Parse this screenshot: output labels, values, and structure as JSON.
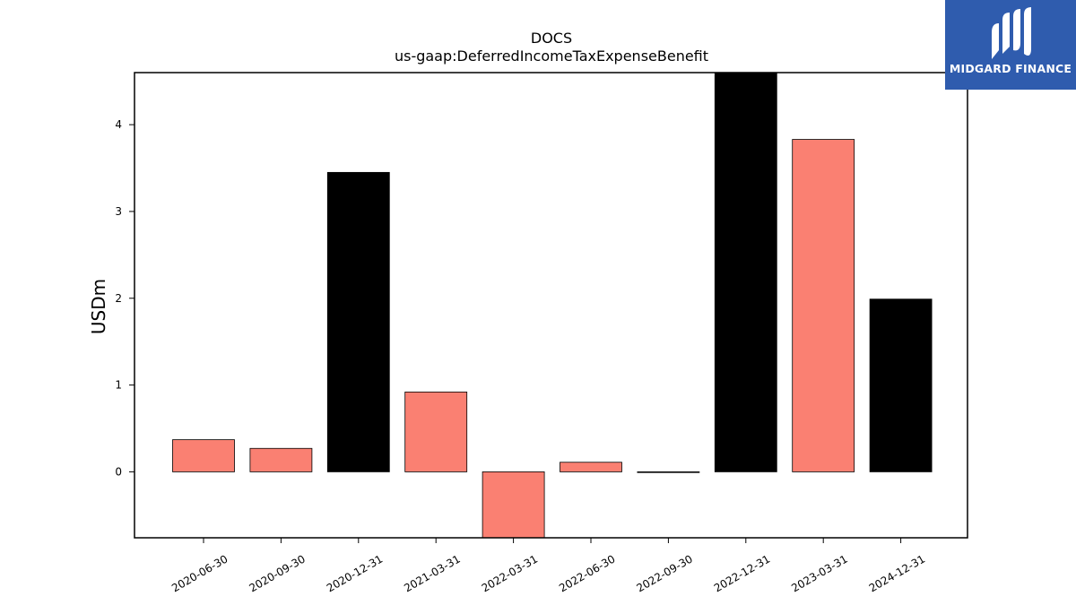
{
  "chart_data": {
    "type": "bar",
    "title": "DOCS",
    "subtitle": "us-gaap:DeferredIncomeTaxExpenseBenefit",
    "xlabel": "",
    "ylabel": "USDm",
    "ylim": [
      -0.76,
      4.6
    ],
    "yticks": [
      0,
      1,
      2,
      3,
      4
    ],
    "grid": false,
    "categories": [
      "2020-06-30",
      "2020-09-30",
      "2020-12-31",
      "2021-03-31",
      "2022-03-31",
      "2022-06-30",
      "2022-09-30",
      "2022-12-31",
      "2023-03-31",
      "2024-12-31"
    ],
    "values": [
      0.37,
      0.27,
      3.45,
      0.92,
      -0.76,
      0.11,
      -0.005,
      4.6,
      3.83,
      1.99
    ],
    "bar_colors": [
      "#fa8072",
      "#fa8072",
      "#000000",
      "#fa8072",
      "#fa8072",
      "#fa8072",
      "#fa8072",
      "#000000",
      "#fa8072",
      "#000000"
    ]
  },
  "logo": {
    "text": "MIDGARD FINANCE",
    "background": "#2f5cae"
  }
}
